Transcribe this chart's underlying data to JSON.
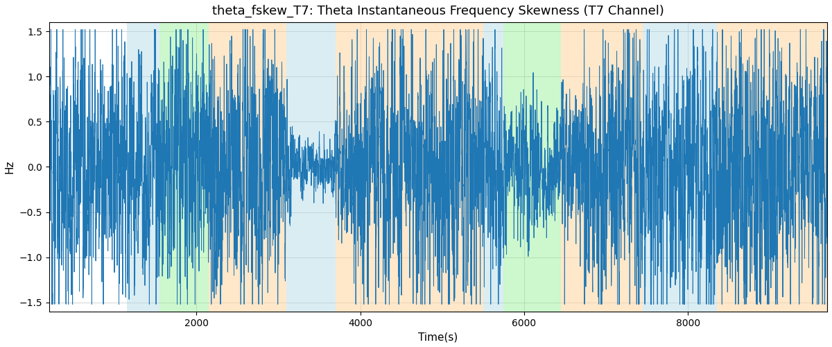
{
  "title": "theta_fskew_T7: Theta Instantaneous Frequency Skewness (T7 Channel)",
  "xlabel": "Time(s)",
  "ylabel": "Hz",
  "ylim": [
    -1.6,
    1.6
  ],
  "xlim": [
    200,
    9700
  ],
  "line_color": "#1f77b4",
  "line_width": 0.7,
  "background_color": "#ffffff",
  "grid_color": "#b0b0b0",
  "figsize": [
    12,
    5
  ],
  "dpi": 100,
  "title_fontsize": 13,
  "axis_fontsize": 11,
  "colored_bands": [
    {
      "xmin": 1150,
      "xmax": 1550,
      "color": "#add8e6",
      "alpha": 0.45
    },
    {
      "xmin": 1550,
      "xmax": 2150,
      "color": "#90ee90",
      "alpha": 0.45
    },
    {
      "xmin": 2150,
      "xmax": 3100,
      "color": "#ffd59e",
      "alpha": 0.55
    },
    {
      "xmin": 3100,
      "xmax": 3700,
      "color": "#add8e6",
      "alpha": 0.45
    },
    {
      "xmin": 3700,
      "xmax": 4200,
      "color": "#ffd59e",
      "alpha": 0.55
    },
    {
      "xmin": 4200,
      "xmax": 5500,
      "color": "#ffd59e",
      "alpha": 0.55
    },
    {
      "xmin": 5500,
      "xmax": 5750,
      "color": "#add8e6",
      "alpha": 0.45
    },
    {
      "xmin": 5750,
      "xmax": 6450,
      "color": "#90ee90",
      "alpha": 0.45
    },
    {
      "xmin": 6450,
      "xmax": 7450,
      "color": "#ffd59e",
      "alpha": 0.55
    },
    {
      "xmin": 7450,
      "xmax": 8350,
      "color": "#add8e6",
      "alpha": 0.45
    },
    {
      "xmin": 8350,
      "xmax": 9700,
      "color": "#ffd59e",
      "alpha": 0.55
    }
  ],
  "seed": 12345,
  "n_points": 9500,
  "x_start": 200,
  "x_end": 9700,
  "yticks": [
    -1.5,
    -1.0,
    -0.5,
    0.0,
    0.5,
    1.0,
    1.5
  ],
  "xticks": [
    2000,
    4000,
    6000,
    8000
  ],
  "amplitude_envelope": [
    {
      "x_start": 200,
      "x_end": 1150,
      "amp": 1.0
    },
    {
      "x_start": 1150,
      "x_end": 1550,
      "amp": 0.85
    },
    {
      "x_start": 1550,
      "x_end": 2150,
      "amp": 1.0
    },
    {
      "x_start": 2150,
      "x_end": 3050,
      "amp": 1.0
    },
    {
      "x_start": 3050,
      "x_end": 3150,
      "amp": 0.6
    },
    {
      "x_start": 3150,
      "x_end": 3700,
      "amp": 0.2
    },
    {
      "x_start": 3700,
      "x_end": 3900,
      "amp": 0.6
    },
    {
      "x_start": 3900,
      "x_end": 5500,
      "amp": 1.0
    },
    {
      "x_start": 5500,
      "x_end": 5750,
      "amp": 0.85
    },
    {
      "x_start": 5750,
      "x_end": 6200,
      "amp": 0.6
    },
    {
      "x_start": 6200,
      "x_end": 6450,
      "amp": 0.4
    },
    {
      "x_start": 6450,
      "x_end": 6700,
      "amp": 0.6
    },
    {
      "x_start": 6700,
      "x_end": 7450,
      "amp": 1.0
    },
    {
      "x_start": 7450,
      "x_end": 8350,
      "amp": 1.0
    },
    {
      "x_start": 8350,
      "x_end": 9700,
      "amp": 1.0
    }
  ]
}
